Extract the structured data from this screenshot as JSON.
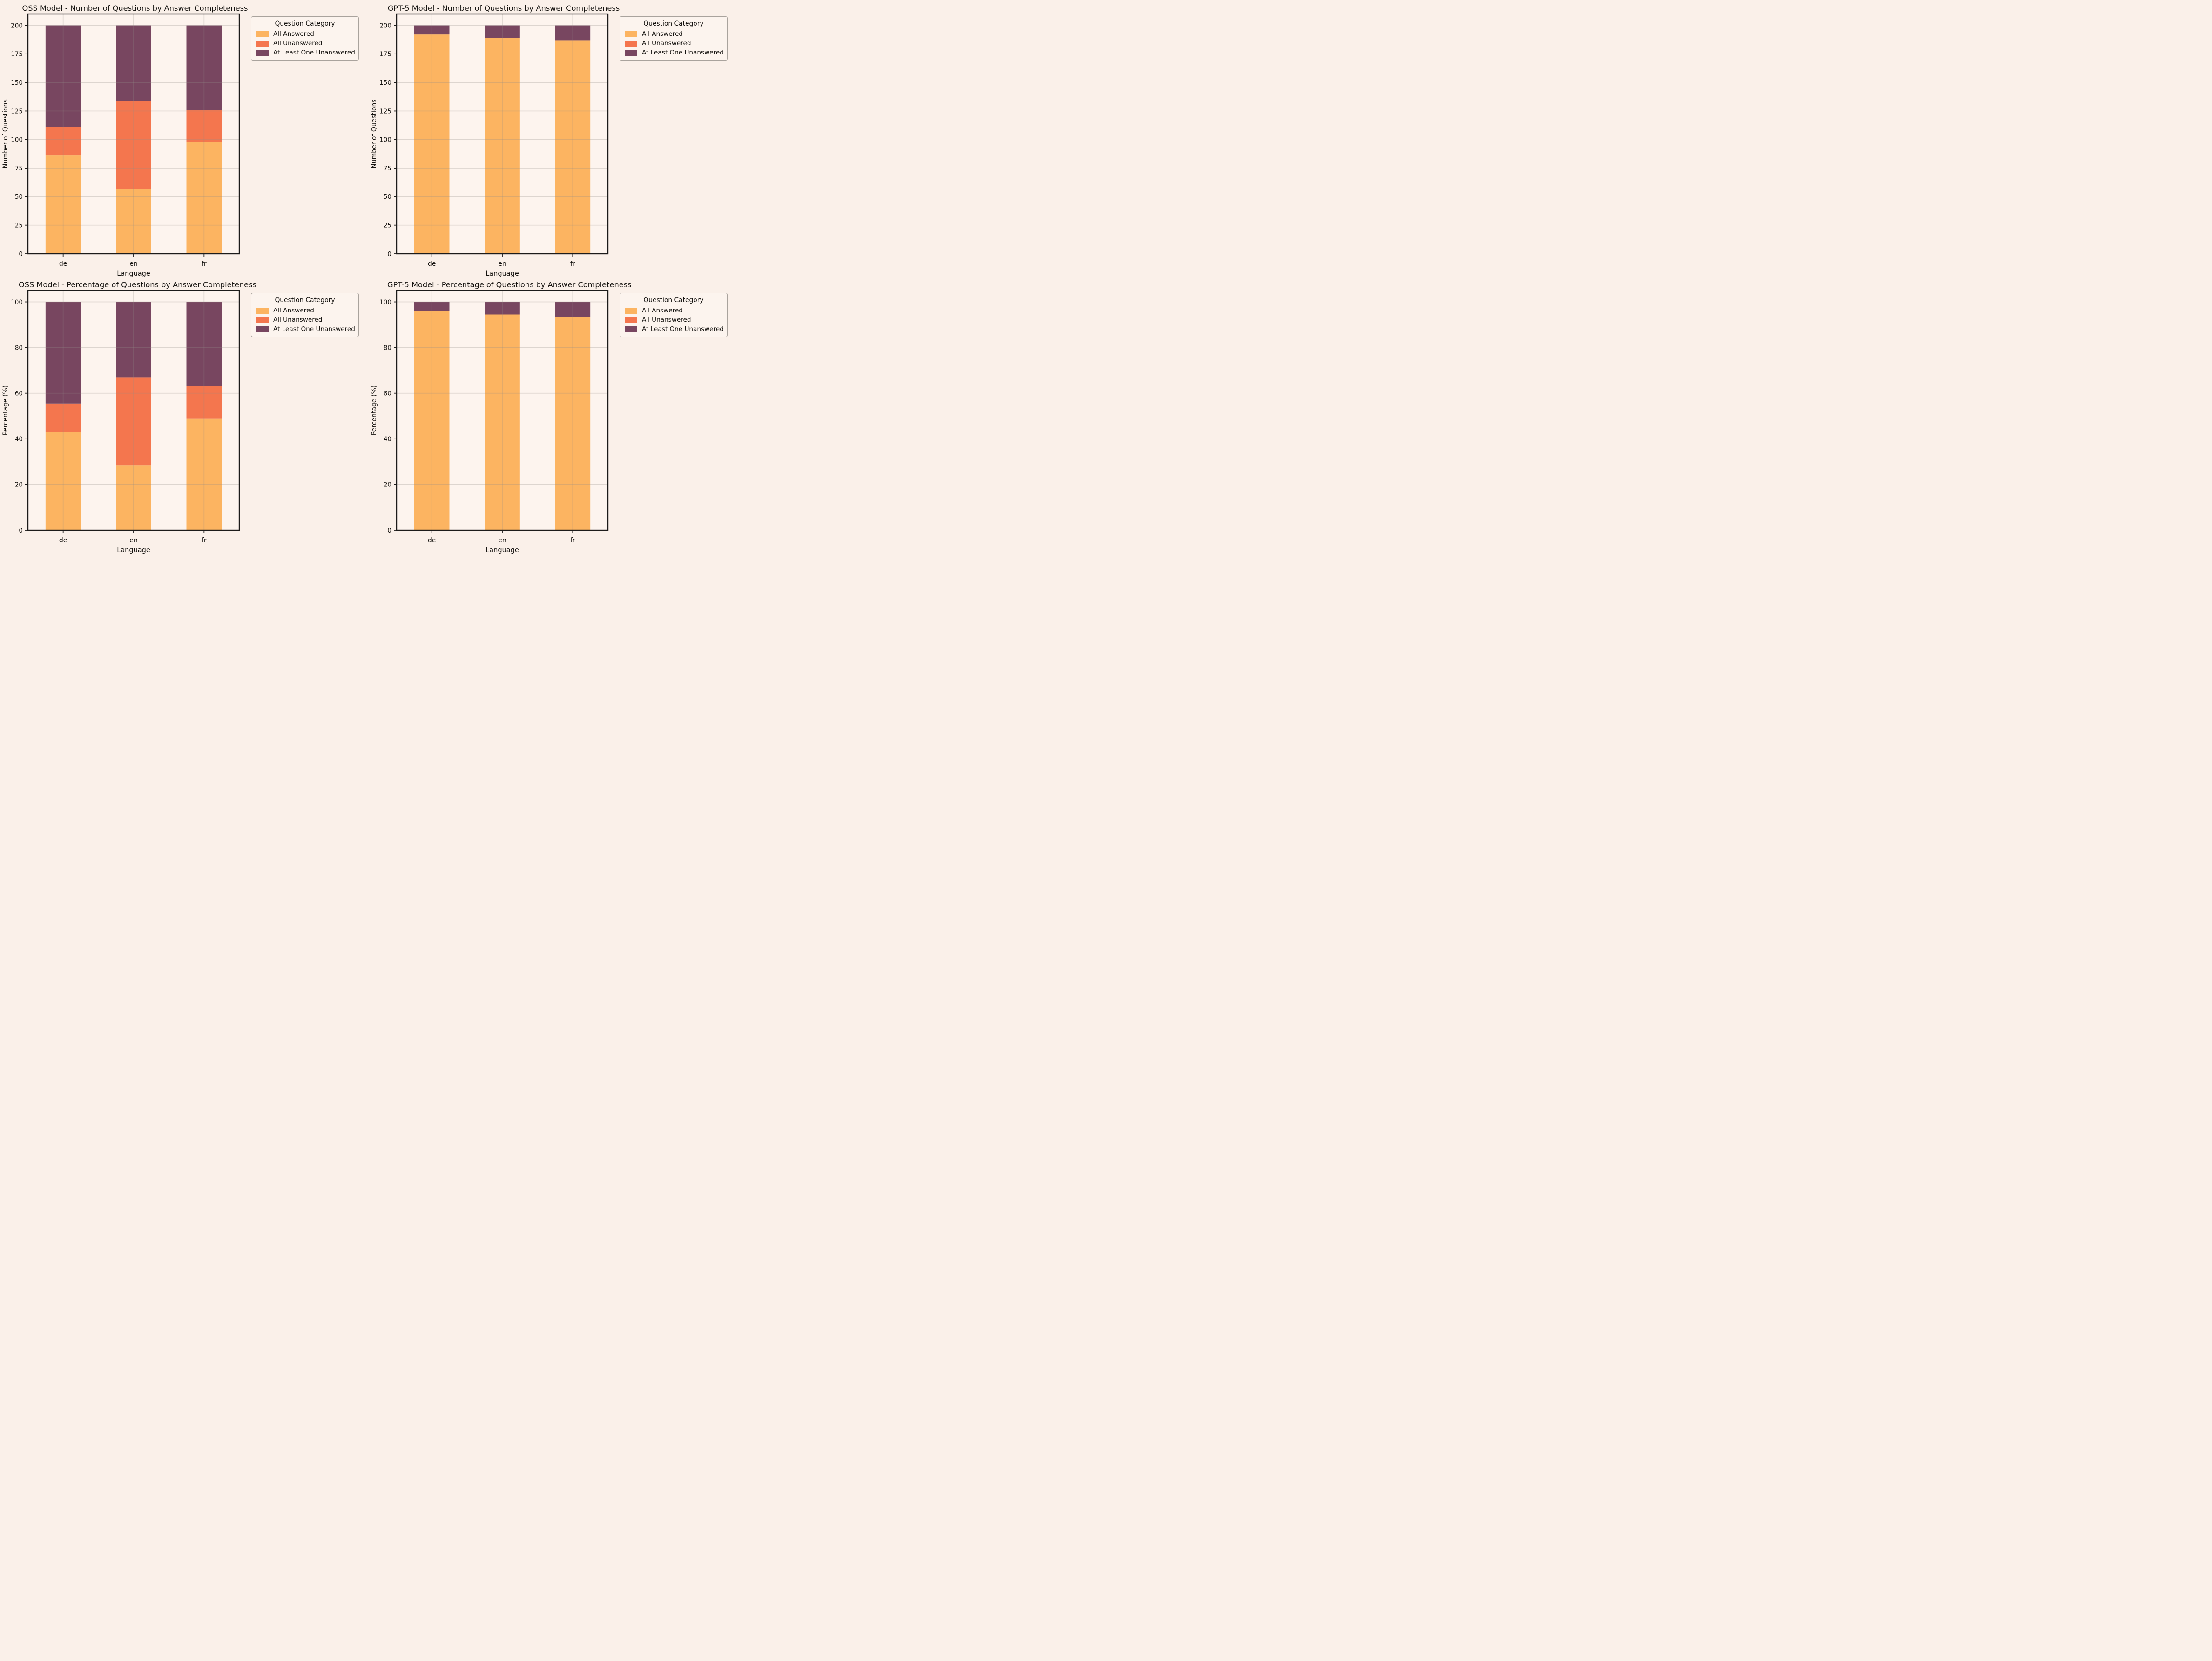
{
  "colors": {
    "all_answered": "#FCB461",
    "all_unanswered": "#F4764E",
    "at_least_one_unanswered": "#784660",
    "figure_bg": "#FAF0E9",
    "axes_bg": "#FDF4EE",
    "gridline": "#E5E0DB",
    "spine": "#1C1B1A",
    "text": "#151310"
  },
  "legend": {
    "title": "Question Category",
    "entries": [
      {
        "label": "All Answered",
        "color_key": "all_answered"
      },
      {
        "label": "All Unanswered",
        "color_key": "all_unanswered"
      },
      {
        "label": "At Least One Unanswered",
        "color_key": "at_least_one_unanswered"
      }
    ]
  },
  "chart_data": [
    {
      "id": "oss-counts",
      "type": "bar",
      "stacked": true,
      "title": "OSS Model - Number of Questions by Answer Completeness",
      "xlabel": "Language",
      "ylabel": "Number of Questions",
      "categories": [
        "de",
        "en",
        "fr"
      ],
      "series": [
        {
          "name": "All Answered",
          "color_key": "all_answered",
          "values": [
            86,
            57,
            98
          ]
        },
        {
          "name": "All Unanswered",
          "color_key": "all_unanswered",
          "values": [
            25,
            77,
            28
          ]
        },
        {
          "name": "At Least One Unanswered",
          "color_key": "at_least_one_unanswered",
          "values": [
            89,
            66,
            74
          ]
        }
      ],
      "ylim": [
        0,
        200
      ],
      "yticks": [
        0,
        25,
        50,
        75,
        100,
        125,
        150,
        175,
        200
      ],
      "grid": true,
      "legend_position": "outside-right"
    },
    {
      "id": "gpt5-counts",
      "type": "bar",
      "stacked": true,
      "title": "GPT-5 Model - Number of Questions by Answer Completeness",
      "xlabel": "Language",
      "ylabel": "Number of Questions",
      "categories": [
        "de",
        "en",
        "fr"
      ],
      "series": [
        {
          "name": "All Answered",
          "color_key": "all_answered",
          "values": [
            192,
            189,
            187
          ]
        },
        {
          "name": "All Unanswered",
          "color_key": "all_unanswered",
          "values": [
            0,
            0,
            0
          ]
        },
        {
          "name": "At Least One Unanswered",
          "color_key": "at_least_one_unanswered",
          "values": [
            8,
            11,
            13
          ]
        }
      ],
      "ylim": [
        0,
        200
      ],
      "yticks": [
        0,
        25,
        50,
        75,
        100,
        125,
        150,
        175,
        200
      ],
      "grid": true,
      "legend_position": "outside-right"
    },
    {
      "id": "oss-percent",
      "type": "bar",
      "stacked": true,
      "title": "OSS Model - Percentage of Questions by Answer Completeness",
      "xlabel": "Language",
      "ylabel": "Percentage (%)",
      "categories": [
        "de",
        "en",
        "fr"
      ],
      "series": [
        {
          "name": "All Answered",
          "color_key": "all_answered",
          "values": [
            43,
            28.5,
            49
          ]
        },
        {
          "name": "All Unanswered",
          "color_key": "all_unanswered",
          "values": [
            12.5,
            38.5,
            14
          ]
        },
        {
          "name": "At Least One Unanswered",
          "color_key": "at_least_one_unanswered",
          "values": [
            44.5,
            33,
            37
          ]
        }
      ],
      "ylim": [
        0,
        100
      ],
      "yticks": [
        0,
        20,
        40,
        60,
        80,
        100
      ],
      "grid": true,
      "legend_position": "outside-right"
    },
    {
      "id": "gpt5-percent",
      "type": "bar",
      "stacked": true,
      "title": "GPT-5 Model - Percentage of Questions by Answer Completeness",
      "xlabel": "Language",
      "ylabel": "Percentage (%)",
      "categories": [
        "de",
        "en",
        "fr"
      ],
      "series": [
        {
          "name": "All Answered",
          "color_key": "all_answered",
          "values": [
            96,
            94.5,
            93.5
          ]
        },
        {
          "name": "All Unanswered",
          "color_key": "all_unanswered",
          "values": [
            0,
            0,
            0
          ]
        },
        {
          "name": "At Least One Unanswered",
          "color_key": "at_least_one_unanswered",
          "values": [
            4,
            5.5,
            6.5
          ]
        }
      ],
      "ylim": [
        0,
        100
      ],
      "yticks": [
        0,
        20,
        40,
        60,
        80,
        100
      ],
      "grid": true,
      "legend_position": "outside-right"
    }
  ]
}
